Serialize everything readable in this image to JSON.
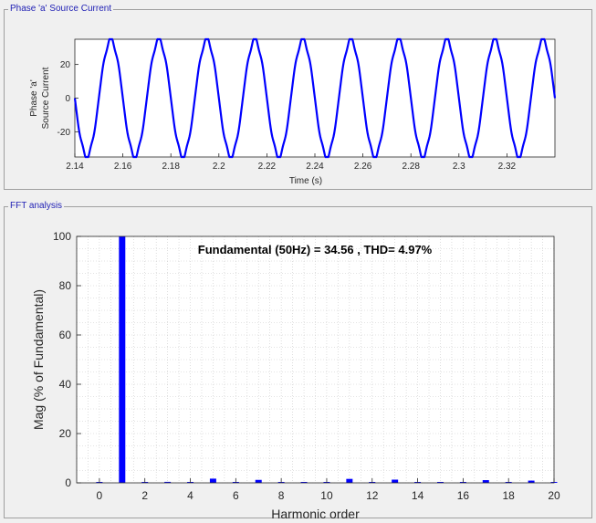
{
  "panels": {
    "top_title": "Phase 'a' Source Current",
    "bottom_title": "FFT analysis"
  },
  "colors": {
    "series": "#0000ff",
    "panel_title": "#1f1fb4",
    "background": "#f0f0f0"
  },
  "chart_data": [
    {
      "type": "line",
      "title": "",
      "xlabel": "Time (s)",
      "ylabel_lines": [
        "Phase 'a'",
        "Source Current"
      ],
      "xlim": [
        2.14,
        2.34
      ],
      "ylim": [
        -35,
        35
      ],
      "xticks": [
        "2.14",
        "2.16",
        "2.18",
        "2.2",
        "2.22",
        "2.24",
        "2.26",
        "2.28",
        "2.3",
        "2.32"
      ],
      "yticks": [
        "20",
        "0",
        "-20"
      ],
      "series": [
        {
          "frequency_hz": 50,
          "amplitude": 35,
          "values_note": "sinusoid with mild distortion",
          "phase_deg": 0
        }
      ],
      "grid": false
    },
    {
      "type": "bar",
      "title": "",
      "annotation": "Fundamental (50Hz) = 34.56 , THD= 4.97%",
      "xlabel": "Harmonic order",
      "ylabel": "Mag (% of Fundamental)",
      "xlim": [
        -1,
        20
      ],
      "ylim": [
        0,
        100
      ],
      "xticks": [
        "0",
        "2",
        "4",
        "6",
        "8",
        "10",
        "12",
        "14",
        "16",
        "18",
        "20"
      ],
      "yticks": [
        "0",
        "20",
        "40",
        "60",
        "80",
        "100"
      ],
      "categories": [
        0,
        1,
        2,
        3,
        4,
        5,
        6,
        7,
        8,
        9,
        10,
        11,
        12,
        13,
        14,
        15,
        16,
        17,
        18,
        19,
        20
      ],
      "values": [
        0.1,
        100,
        0.1,
        0.4,
        0.1,
        1.7,
        0.1,
        1.2,
        0.1,
        0.2,
        0.1,
        1.6,
        0.1,
        1.3,
        0.1,
        0.2,
        0.1,
        1.1,
        0.1,
        0.9,
        0.1
      ],
      "grid": true
    }
  ]
}
